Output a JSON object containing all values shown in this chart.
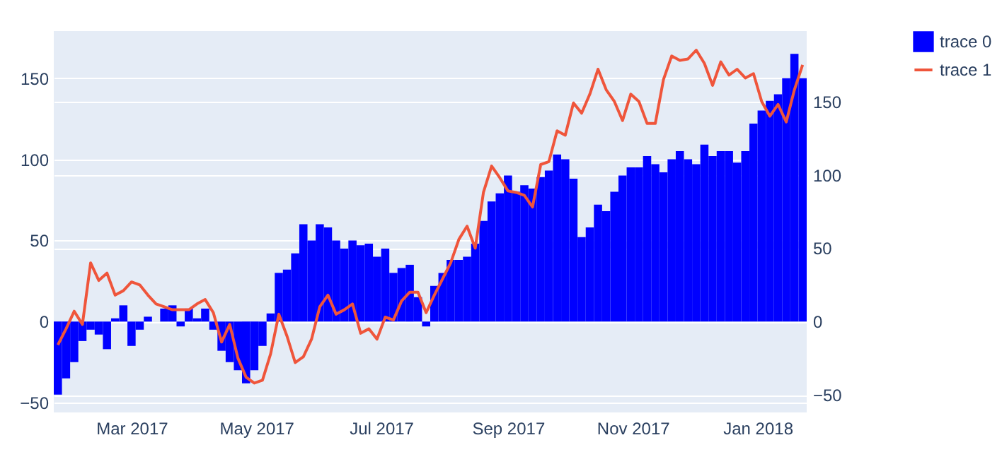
{
  "chart_data": {
    "type": "bar",
    "x": [
      "2017-01-24",
      "2017-01-28",
      "2017-02-01",
      "2017-02-05",
      "2017-02-09",
      "2017-02-13",
      "2017-02-17",
      "2017-02-21",
      "2017-02-25",
      "2017-03-01",
      "2017-03-05",
      "2017-03-09",
      "2017-03-13",
      "2017-03-17",
      "2017-03-21",
      "2017-03-25",
      "2017-03-29",
      "2017-04-02",
      "2017-04-06",
      "2017-04-10",
      "2017-04-14",
      "2017-04-18",
      "2017-04-22",
      "2017-04-26",
      "2017-04-30",
      "2017-05-04",
      "2017-05-08",
      "2017-05-12",
      "2017-05-16",
      "2017-05-20",
      "2017-05-24",
      "2017-05-28",
      "2017-06-01",
      "2017-06-05",
      "2017-06-09",
      "2017-06-13",
      "2017-06-17",
      "2017-06-21",
      "2017-06-25",
      "2017-06-29",
      "2017-07-03",
      "2017-07-07",
      "2017-07-11",
      "2017-07-15",
      "2017-07-19",
      "2017-07-23",
      "2017-07-27",
      "2017-07-31",
      "2017-08-04",
      "2017-08-08",
      "2017-08-12",
      "2017-08-16",
      "2017-08-20",
      "2017-08-24",
      "2017-08-28",
      "2017-09-01",
      "2017-09-05",
      "2017-09-09",
      "2017-09-13",
      "2017-09-17",
      "2017-09-21",
      "2017-09-25",
      "2017-09-29",
      "2017-10-03",
      "2017-10-07",
      "2017-10-11",
      "2017-10-15",
      "2017-10-19",
      "2017-10-23",
      "2017-10-27",
      "2017-10-31",
      "2017-11-04",
      "2017-11-08",
      "2017-11-12",
      "2017-11-16",
      "2017-11-20",
      "2017-11-24",
      "2017-11-28",
      "2017-12-02",
      "2017-12-06",
      "2017-12-10",
      "2017-12-14",
      "2017-12-18",
      "2017-12-22",
      "2017-12-26",
      "2017-12-30",
      "2018-01-03",
      "2018-01-07",
      "2018-01-11",
      "2018-01-15",
      "2018-01-19",
      "2018-01-23"
    ],
    "series": [
      {
        "name": "trace 0",
        "color": "#0000ff",
        "values": [
          -45,
          -35,
          -25,
          -12,
          -5,
          -8,
          -17,
          2,
          10,
          -15,
          -5,
          3,
          0,
          8,
          10,
          -3,
          8,
          2,
          8,
          -5,
          -18,
          -25,
          -30,
          -38,
          -30,
          -15,
          5,
          30,
          32,
          42,
          60,
          50,
          60,
          58,
          50,
          45,
          50,
          47,
          48,
          40,
          45,
          30,
          33,
          35,
          15,
          -3,
          22,
          30,
          38,
          38,
          40,
          48,
          62,
          74,
          79,
          90,
          80,
          84,
          82,
          89,
          93,
          103,
          100,
          88,
          52,
          58,
          72,
          68,
          80,
          90,
          95,
          95,
          102,
          97,
          92,
          100,
          105,
          100,
          97,
          109,
          102,
          105,
          105,
          98,
          105,
          122,
          130,
          136,
          140,
          150,
          165,
          150
        ]
      },
      {
        "name": "trace 1",
        "type": "line",
        "axis": "y2",
        "color": "#ef553b",
        "values": [
          -16,
          -5,
          7,
          -2,
          40,
          28,
          33,
          18,
          21,
          27,
          25,
          18,
          12,
          10,
          8,
          8,
          8,
          12,
          15,
          6,
          -14,
          -2,
          -25,
          -38,
          -42,
          -40,
          -22,
          5,
          -10,
          -28,
          -24,
          -12,
          10,
          18,
          5,
          8,
          12,
          -8,
          -5,
          -12,
          3,
          1,
          14,
          20,
          20,
          6,
          18,
          29,
          40,
          56,
          65,
          50,
          88,
          106,
          98,
          89,
          88,
          86,
          78,
          107,
          109,
          130,
          127,
          149,
          142,
          155,
          172,
          158,
          150,
          137,
          155,
          150,
          135,
          135,
          165,
          181,
          178,
          179,
          185,
          176,
          161,
          177,
          168,
          172,
          166,
          169,
          150,
          140,
          148,
          136,
          158,
          175
        ]
      }
    ],
    "xlim": [
      "2017-01-22",
      "2018-01-25"
    ],
    "xticks": [
      {
        "value": "2017-03-01",
        "label": "Mar 2017"
      },
      {
        "value": "2017-05-01",
        "label": "May 2017"
      },
      {
        "value": "2017-07-01",
        "label": "Jul 2017"
      },
      {
        "value": "2017-09-01",
        "label": "Sep 2017"
      },
      {
        "value": "2017-11-01",
        "label": "Nov 2017"
      },
      {
        "value": "2018-01-01",
        "label": "Jan 2018"
      }
    ],
    "ylim": [
      -56,
      179
    ],
    "yticks": [
      -50,
      0,
      50,
      100,
      150
    ],
    "y2lim": [
      -62,
      198
    ],
    "y2ticks": [
      -50,
      0,
      50,
      100,
      150
    ],
    "grid": "y",
    "legend": "top right"
  }
}
